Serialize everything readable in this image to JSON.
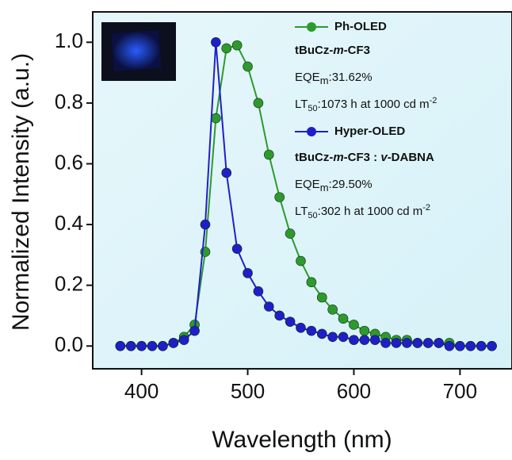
{
  "chart_data": {
    "type": "line",
    "xlabel": "Wavelength (nm)",
    "ylabel": "Normalized Intensity (a.u.)",
    "x": [
      380,
      390,
      400,
      410,
      420,
      430,
      440,
      450,
      460,
      470,
      480,
      490,
      500,
      510,
      520,
      530,
      540,
      550,
      560,
      570,
      580,
      590,
      600,
      610,
      620,
      630,
      640,
      650,
      660,
      670,
      680,
      690,
      700,
      710,
      720,
      730
    ],
    "series": [
      {
        "name": "Ph-OLED",
        "color": "#2e9a2e",
        "values": [
          0,
          0,
          0,
          0,
          0,
          0.01,
          0.03,
          0.07,
          0.31,
          0.75,
          0.98,
          0.99,
          0.92,
          0.8,
          0.63,
          0.49,
          0.37,
          0.28,
          0.21,
          0.16,
          0.12,
          0.09,
          0.07,
          0.05,
          0.04,
          0.03,
          0.02,
          0.02,
          0.01,
          0.01,
          0.01,
          0.01,
          0,
          0,
          0,
          0
        ]
      },
      {
        "name": "Hyper-OLED",
        "color": "#1f1fc8",
        "values": [
          0,
          0,
          0,
          0,
          0,
          0.01,
          0.02,
          0.05,
          0.4,
          1.0,
          0.57,
          0.32,
          0.24,
          0.18,
          0.13,
          0.1,
          0.08,
          0.06,
          0.05,
          0.04,
          0.03,
          0.03,
          0.02,
          0.02,
          0.02,
          0.01,
          0.01,
          0.01,
          0.01,
          0.01,
          0.01,
          0,
          0,
          0,
          0,
          0
        ]
      }
    ],
    "annotations": [
      [
        "tBuCz-",
        "m",
        "-CF3"
      ],
      [
        "EQE",
        "m",
        ":31.62%"
      ],
      [
        "LT",
        "50",
        ":1073 h at 1000 cd m",
        "-2"
      ],
      [
        "tBuCz-",
        "m",
        "-CF3 : ",
        "v",
        "-DABNA"
      ],
      [
        "EQE",
        "m",
        ":29.50%"
      ],
      [
        "LT",
        "50",
        ":302 h at 1000 cd m",
        "-2"
      ]
    ],
    "xlim": [
      354,
      749
    ],
    "xticks": [
      400,
      500,
      600,
      700
    ],
    "ylim": [
      -0.075,
      1.1
    ],
    "yticks": [
      {
        "value": 0,
        "label": "0.0"
      },
      0.2,
      0.4,
      0.6,
      0.8,
      {
        "value": 1,
        "label": "1.0"
      }
    ]
  }
}
